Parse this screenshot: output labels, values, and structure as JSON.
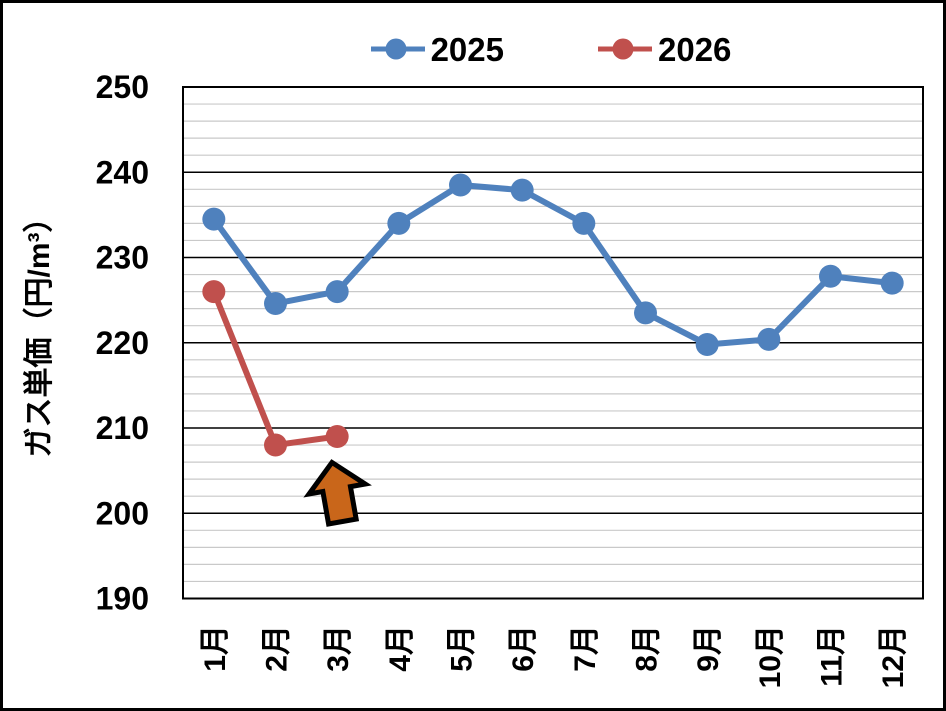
{
  "chart_data": {
    "type": "line",
    "title": "",
    "categories": [
      "1月",
      "2月",
      "3月",
      "4月",
      "5月",
      "6月",
      "7月",
      "8月",
      "9月",
      "10月",
      "11月",
      "12月"
    ],
    "series": [
      {
        "name": "2025",
        "color": "#4F81BD",
        "values": [
          234.5,
          224.6,
          226.0,
          234.0,
          238.5,
          237.9,
          234.0,
          223.5,
          219.8,
          220.4,
          227.8,
          227.0
        ]
      },
      {
        "name": "2026",
        "color": "#C0504D",
        "values": [
          226.0,
          208.0,
          209.0
        ]
      }
    ],
    "xlabel": "",
    "ylabel": "ガス単価（円/m³）",
    "ylim": [
      190,
      250
    ],
    "y_ticks": [
      190,
      200,
      210,
      220,
      230,
      240,
      250
    ],
    "y_minor_step": 2,
    "grid": true,
    "gridline_major_color": "#000000",
    "gridline_minor_color": "#C9C9C9",
    "legend_position": "top",
    "annotation": {
      "type": "up-arrow",
      "target_series": "2026",
      "target_category": "3月",
      "fill_color": "#C9661A",
      "outline_color": "#000000"
    }
  },
  "frame": {
    "border_color": "#000000",
    "background_color": "#FFFFFF"
  }
}
